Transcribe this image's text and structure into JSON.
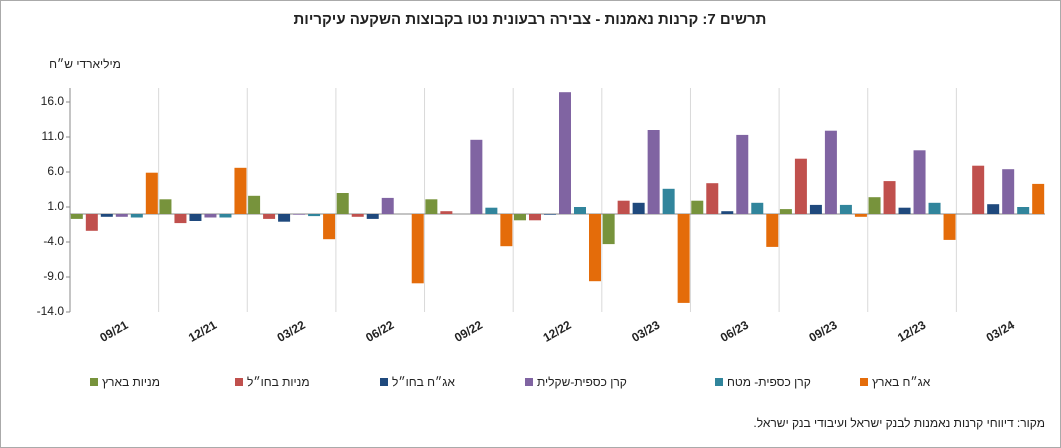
{
  "chart_data": {
    "type": "bar",
    "title": "תרשים 7: קרנות נאמנות - צבירה רבעונית נטו בקבוצות השקעה עיקריות",
    "y_axis_label": "מיליארדי ש״ח",
    "source": "מקור: דיווחי קרנות נאמנות לבנק ישראל ועיבודי בנק ישראל.",
    "categories": [
      "09/21",
      "12/21",
      "03/22",
      "06/22",
      "09/22",
      "12/22",
      "03/23",
      "06/23",
      "09/23",
      "12/23",
      "03/24"
    ],
    "series": [
      {
        "name": "מניות בארץ",
        "color": "#77933c",
        "values": [
          -0.7,
          2.1,
          2.6,
          3.0,
          2.1,
          -0.9,
          -4.3,
          1.9,
          0.7,
          2.4,
          0
        ]
      },
      {
        "name": "מניות בחו״ל",
        "color": "#c0504d",
        "values": [
          -2.4,
          -1.3,
          -0.7,
          -0.4,
          0.4,
          -0.9,
          1.9,
          4.4,
          7.9,
          4.7,
          6.9
        ]
      },
      {
        "name": "אג״ח בחו״ל",
        "color": "#1f497d",
        "values": [
          -0.4,
          -1.0,
          -1.1,
          -0.7,
          0,
          -0.1,
          1.6,
          0.4,
          1.3,
          0.9,
          1.4
        ]
      },
      {
        "name": "קרן כספית-שקלית",
        "color": "#8064a2",
        "values": [
          -0.4,
          -0.5,
          -0.1,
          2.3,
          10.6,
          17.4,
          12.0,
          11.3,
          11.9,
          9.1,
          6.4
        ]
      },
      {
        "name": "קרן כספית- מטח",
        "color": "#31859c",
        "values": [
          -0.5,
          -0.5,
          -0.3,
          0,
          0.9,
          1.0,
          3.6,
          1.6,
          1.3,
          1.6,
          1.0
        ]
      },
      {
        "name": "אג״ח בארץ",
        "color": "#e46c0a",
        "values": [
          5.9,
          6.6,
          -3.6,
          -9.9,
          -4.6,
          -9.6,
          -12.7,
          -4.7,
          -0.4,
          -3.7,
          4.3
        ]
      }
    ],
    "ylim": [
      -14,
      18
    ],
    "yticks": [
      {
        "value": -14,
        "label": "-14.0"
      },
      {
        "value": -9,
        "label": "-9.0"
      },
      {
        "value": -4,
        "label": "-4.0"
      },
      {
        "value": 1,
        "label": "1.0"
      },
      {
        "value": 6,
        "label": "6.0"
      },
      {
        "value": 11,
        "label": "11.0"
      },
      {
        "value": 16,
        "label": "16.0"
      }
    ],
    "grid": true
  }
}
